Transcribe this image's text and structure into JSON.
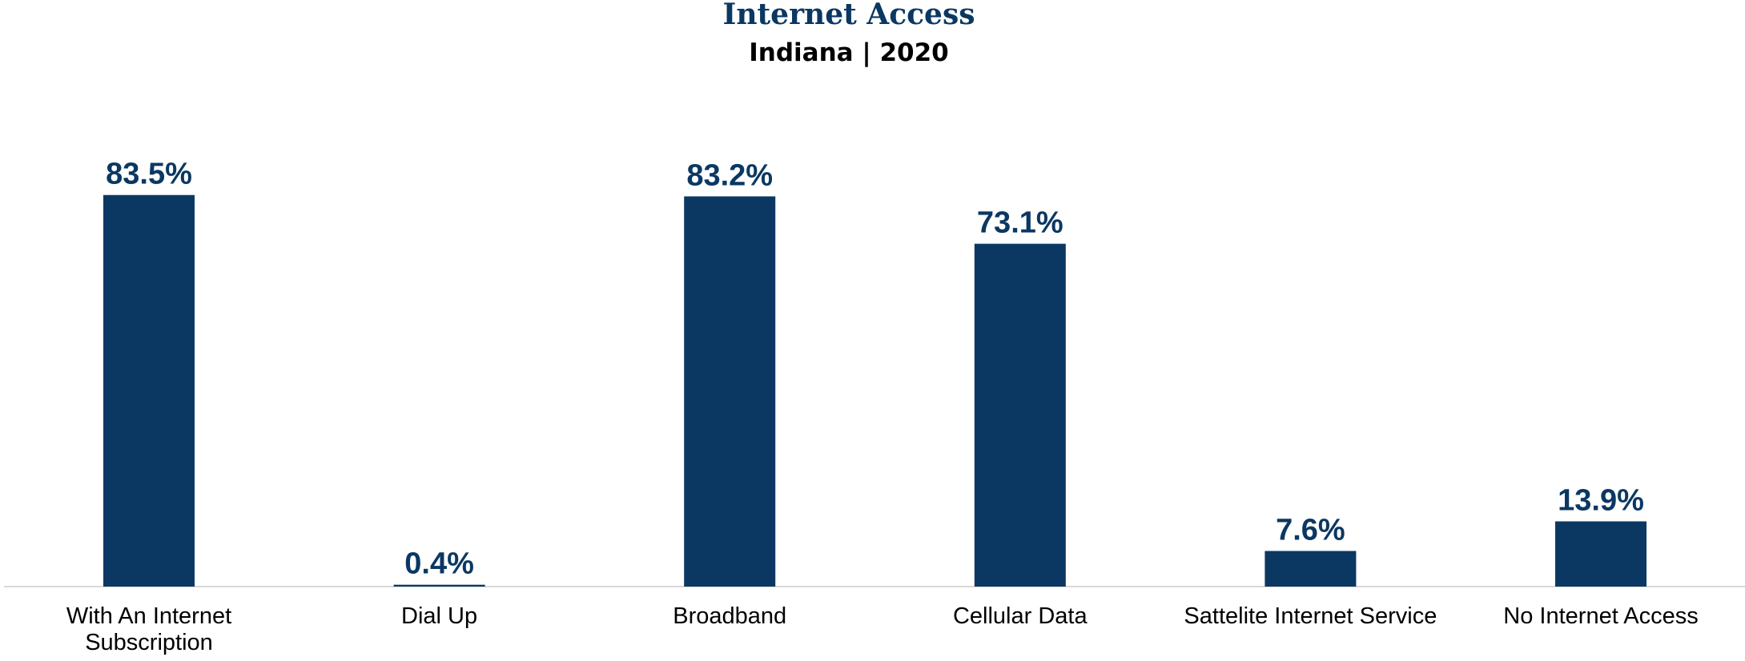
{
  "chart_data": {
    "type": "bar",
    "title": "Internet Access",
    "subtitle": "Indiana | 2020",
    "categories": [
      "With An Internet Subscription",
      "Dial Up",
      "Broadband",
      "Cellular Data",
      "Sattelite Internet Service",
      "No Internet Access"
    ],
    "values": [
      83.5,
      0.4,
      83.2,
      73.1,
      7.6,
      13.9
    ],
    "value_labels": [
      "83.5%",
      "0.4%",
      "83.2%",
      "73.1%",
      "7.6%",
      "13.9%"
    ],
    "ylim": [
      0,
      100
    ],
    "grid": false,
    "legend": "none"
  },
  "colors": {
    "bar": "#0b3862",
    "title": "#0b3862",
    "value_label": "#0b3862",
    "axis": "#d9d9d9"
  }
}
